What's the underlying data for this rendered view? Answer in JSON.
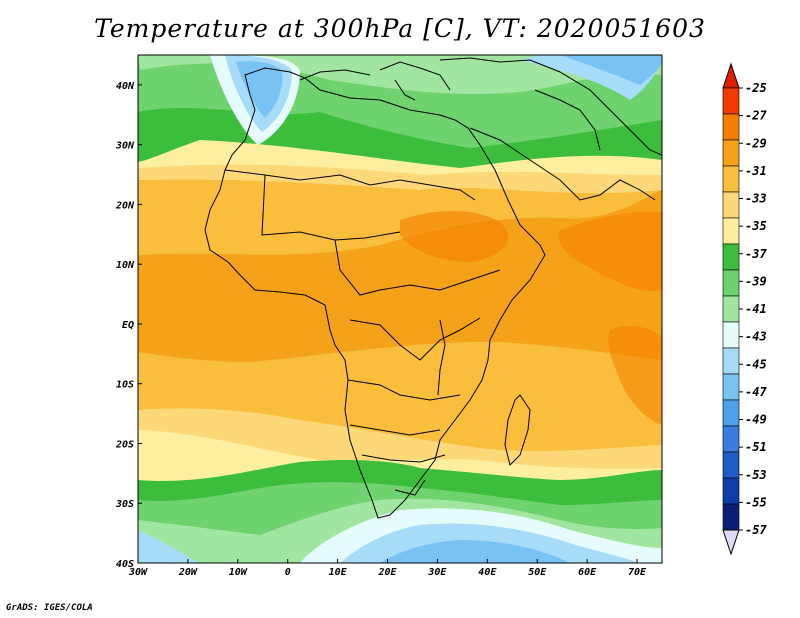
{
  "title": "Temperature at 300hPa [C], VT: 2020051603",
  "credit": "GrADS: IGES/COLA",
  "map": {
    "lon_range": [
      -30,
      75
    ],
    "lat_range": [
      -40,
      45
    ],
    "lon_ticks": [
      {
        "value": -30,
        "label": "30W"
      },
      {
        "value": -20,
        "label": "20W"
      },
      {
        "value": -10,
        "label": "10W"
      },
      {
        "value": 0,
        "label": "0"
      },
      {
        "value": 10,
        "label": "10E"
      },
      {
        "value": 20,
        "label": "20E"
      },
      {
        "value": 30,
        "label": "30E"
      },
      {
        "value": 40,
        "label": "40E"
      },
      {
        "value": 50,
        "label": "50E"
      },
      {
        "value": 60,
        "label": "60E"
      },
      {
        "value": 70,
        "label": "70E"
      }
    ],
    "lat_ticks": [
      {
        "value": 40,
        "label": "40N"
      },
      {
        "value": 30,
        "label": "30N"
      },
      {
        "value": 20,
        "label": "20N"
      },
      {
        "value": 10,
        "label": "10N"
      },
      {
        "value": 0,
        "label": "EQ"
      },
      {
        "value": -10,
        "label": "10S"
      },
      {
        "value": -20,
        "label": "20S"
      },
      {
        "value": -30,
        "label": "30S"
      },
      {
        "value": -40,
        "label": "40S"
      }
    ]
  },
  "colorbar": {
    "labels": [
      "-25",
      "-27",
      "-29",
      "-31",
      "-33",
      "-35",
      "-37",
      "-39",
      "-41",
      "-43",
      "-45",
      "-47",
      "-49",
      "-51",
      "-53",
      "-55",
      "-57"
    ],
    "colors": [
      "#f03a00",
      "#f57d00",
      "#f5a21a",
      "#f8be3c",
      "#fcd878",
      "#fcf0a0",
      "#3cbe3c",
      "#6ed26e",
      "#a0e6a0",
      "#e6fcfc",
      "#a6dcf8",
      "#78c2f4",
      "#4ea0e8",
      "#3a7ce2",
      "#1e5ac8",
      "#0e3ca8",
      "#0a1e78"
    ],
    "top_color": "#e01e00",
    "bottom_color": "#e0d8f8"
  }
}
